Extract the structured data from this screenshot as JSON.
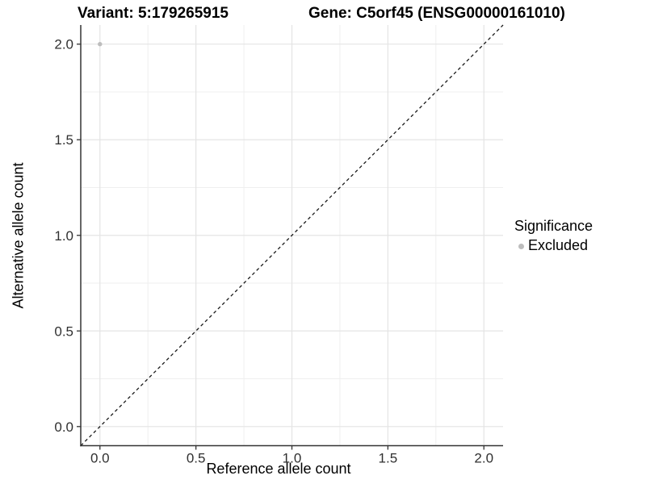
{
  "header": {
    "variant_title": "Variant: 5:179265915",
    "gene_title": "Gene: C5orf45 (ENSG00000161010)"
  },
  "axes": {
    "x_label": "Reference allele count",
    "y_label": "Alternative allele count"
  },
  "legend": {
    "title": "Significance",
    "items": [
      {
        "label": "Excluded",
        "color": "#bdbdbd"
      }
    ]
  },
  "colors": {
    "background": "#ffffff",
    "grid_major": "#e4e4e4",
    "grid_minor": "#efefef",
    "axis_line": "#333333",
    "tick_mark": "#333333",
    "tick_text": "#303030",
    "identity_line": "#1a1a1a",
    "point": "#bdbdbd"
  },
  "chart_data": {
    "type": "scatter",
    "title": "Variant: 5:179265915    Gene: C5orf45 (ENSG00000161010)",
    "xlabel": "Reference allele count",
    "ylabel": "Alternative allele count",
    "xlim": [
      -0.1,
      2.1
    ],
    "ylim": [
      -0.1,
      2.1
    ],
    "x_ticks": [
      0.0,
      0.5,
      1.0,
      1.5,
      2.0
    ],
    "y_ticks": [
      0.0,
      0.5,
      1.0,
      1.5,
      2.0
    ],
    "x_tick_labels": [
      "0.0",
      "0.5",
      "1.0",
      "1.5",
      "2.0"
    ],
    "y_tick_labels": [
      "0.0",
      "0.5",
      "1.0",
      "1.5",
      "2.0"
    ],
    "x_minor_ticks": [
      0.25,
      0.75,
      1.25,
      1.75
    ],
    "y_minor_ticks": [
      0.25,
      0.75,
      1.25,
      1.75
    ],
    "grid": true,
    "legend_position": "right",
    "legend_title": "Significance",
    "series": [
      {
        "name": "Excluded",
        "color": "#bdbdbd",
        "points": [
          {
            "x": 0.0,
            "y": 2.0
          }
        ]
      }
    ],
    "reference_line": {
      "kind": "identity",
      "slope": 1,
      "intercept": 0,
      "style": "dashed",
      "color": "#1a1a1a"
    }
  }
}
